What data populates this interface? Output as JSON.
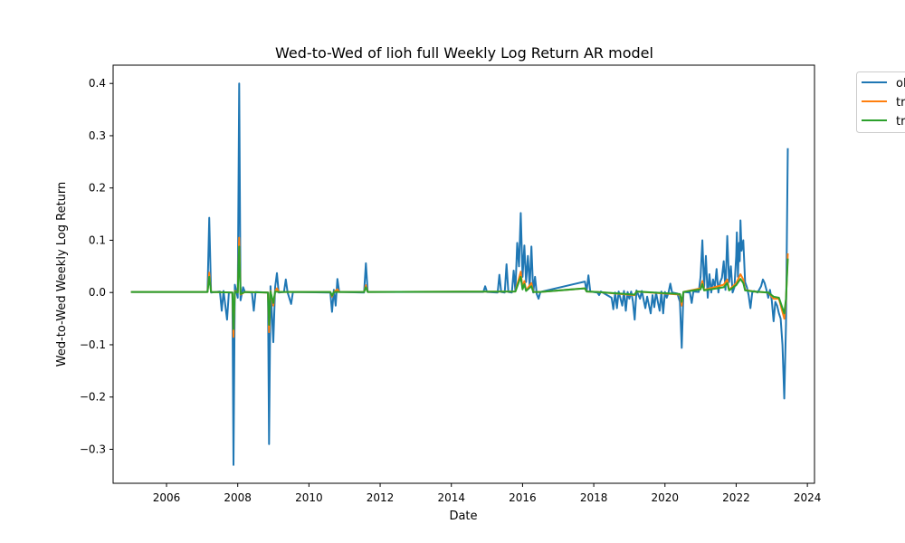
{
  "chart_data": {
    "type": "line",
    "title": "Wed-to-Wed of lioh full Weekly Log Return AR model",
    "xlabel": "Date",
    "ylabel": "Wed-to-Wed Weekly Log Return",
    "xlim": [
      2004.5,
      2024.2
    ],
    "ylim": [
      -0.365,
      0.435
    ],
    "x_ticks": [
      2006,
      2008,
      2010,
      2012,
      2014,
      2016,
      2018,
      2020,
      2022,
      2024
    ],
    "x_tick_labels": [
      "2006",
      "2008",
      "2010",
      "2012",
      "2014",
      "2016",
      "2018",
      "2020",
      "2022",
      "2024"
    ],
    "y_ticks": [
      -0.3,
      -0.2,
      -0.1,
      0.0,
      0.1,
      0.2,
      0.3,
      0.4
    ],
    "y_tick_labels": [
      "−0.3",
      "−0.2",
      "−0.1",
      "0.0",
      "0.1",
      "0.2",
      "0.3",
      "0.4"
    ],
    "grid": false,
    "legend_position": "outside-top-right",
    "series": [
      {
        "name": "ol",
        "color": "#1f77b4",
        "points": [
          [
            2005.0,
            0.001
          ],
          [
            2007.15,
            0.001
          ],
          [
            2007.2,
            0.143
          ],
          [
            2007.25,
            0.0
          ],
          [
            2007.5,
            0.002
          ],
          [
            2007.55,
            -0.035
          ],
          [
            2007.6,
            0.003
          ],
          [
            2007.7,
            -0.052
          ],
          [
            2007.75,
            0.0
          ],
          [
            2007.85,
            0.0
          ],
          [
            2007.88,
            -0.33
          ],
          [
            2007.92,
            0.015
          ],
          [
            2008.0,
            -0.01
          ],
          [
            2008.04,
            0.4
          ],
          [
            2008.08,
            -0.015
          ],
          [
            2008.15,
            0.01
          ],
          [
            2008.2,
            0.001
          ],
          [
            2008.4,
            0.0
          ],
          [
            2008.45,
            -0.035
          ],
          [
            2008.5,
            0.001
          ],
          [
            2008.85,
            0.0
          ],
          [
            2008.88,
            -0.29
          ],
          [
            2008.92,
            0.012
          ],
          [
            2009.0,
            -0.095
          ],
          [
            2009.05,
            0.01
          ],
          [
            2009.1,
            0.037
          ],
          [
            2009.15,
            0.0
          ],
          [
            2009.3,
            0.001
          ],
          [
            2009.35,
            0.025
          ],
          [
            2009.4,
            0.0
          ],
          [
            2009.5,
            -0.022
          ],
          [
            2009.55,
            0.001
          ],
          [
            2010.6,
            0.0
          ],
          [
            2010.65,
            -0.037
          ],
          [
            2010.7,
            0.005
          ],
          [
            2010.75,
            -0.025
          ],
          [
            2010.8,
            0.026
          ],
          [
            2010.85,
            0.001
          ],
          [
            2011.55,
            0.0
          ],
          [
            2011.6,
            0.056
          ],
          [
            2011.65,
            0.001
          ],
          [
            2014.9,
            0.001
          ],
          [
            2014.95,
            0.012
          ],
          [
            2015.0,
            0.001
          ],
          [
            2015.3,
            0.0
          ],
          [
            2015.35,
            0.034
          ],
          [
            2015.4,
            0.001
          ],
          [
            2015.5,
            0.0
          ],
          [
            2015.55,
            0.054
          ],
          [
            2015.6,
            0.001
          ],
          [
            2015.7,
            0.0
          ],
          [
            2015.75,
            0.042
          ],
          [
            2015.8,
            0.003
          ],
          [
            2015.85,
            0.095
          ],
          [
            2015.9,
            0.05
          ],
          [
            2015.95,
            0.152
          ],
          [
            2016.0,
            0.03
          ],
          [
            2016.05,
            0.09
          ],
          [
            2016.1,
            0.02
          ],
          [
            2016.15,
            0.07
          ],
          [
            2016.2,
            0.01
          ],
          [
            2016.25,
            0.088
          ],
          [
            2016.3,
            0.0
          ],
          [
            2016.35,
            0.03
          ],
          [
            2016.4,
            -0.003
          ],
          [
            2016.45,
            -0.012
          ],
          [
            2016.5,
            0.001
          ],
          [
            2017.75,
            0.021
          ],
          [
            2017.8,
            0.002
          ],
          [
            2017.85,
            0.033
          ],
          [
            2017.9,
            0.002
          ],
          [
            2018.1,
            0.0
          ],
          [
            2018.15,
            -0.005
          ],
          [
            2018.2,
            0.002
          ],
          [
            2018.5,
            -0.01
          ],
          [
            2018.55,
            -0.032
          ],
          [
            2018.6,
            0.0
          ],
          [
            2018.65,
            -0.03
          ],
          [
            2018.7,
            0.002
          ],
          [
            2018.8,
            -0.025
          ],
          [
            2018.85,
            0.003
          ],
          [
            2018.9,
            -0.035
          ],
          [
            2018.95,
            0.001
          ],
          [
            2019.0,
            -0.012
          ],
          [
            2019.05,
            0.002
          ],
          [
            2019.1,
            -0.018
          ],
          [
            2019.15,
            -0.052
          ],
          [
            2019.2,
            0.004
          ],
          [
            2019.3,
            -0.012
          ],
          [
            2019.35,
            0.003
          ],
          [
            2019.45,
            -0.03
          ],
          [
            2019.5,
            -0.008
          ],
          [
            2019.6,
            -0.04
          ],
          [
            2019.65,
            -0.005
          ],
          [
            2019.7,
            -0.028
          ],
          [
            2019.75,
            0.0
          ],
          [
            2019.8,
            -0.018
          ],
          [
            2019.85,
            -0.035
          ],
          [
            2019.9,
            0.002
          ],
          [
            2019.95,
            -0.04
          ],
          [
            2020.0,
            0.001
          ],
          [
            2020.05,
            -0.01
          ],
          [
            2020.1,
            0.0
          ],
          [
            2020.15,
            0.017
          ],
          [
            2020.2,
            0.0
          ],
          [
            2020.35,
            -0.002
          ],
          [
            2020.42,
            -0.018
          ],
          [
            2020.47,
            -0.106
          ],
          [
            2020.52,
            0.001
          ],
          [
            2020.7,
            0.0
          ],
          [
            2020.75,
            -0.02
          ],
          [
            2020.8,
            0.002
          ],
          [
            2020.95,
            0.001
          ],
          [
            2021.0,
            0.03
          ],
          [
            2021.05,
            0.1
          ],
          [
            2021.1,
            0.01
          ],
          [
            2021.15,
            0.07
          ],
          [
            2021.2,
            -0.01
          ],
          [
            2021.25,
            0.035
          ],
          [
            2021.3,
            0.0
          ],
          [
            2021.35,
            0.025
          ],
          [
            2021.4,
            0.01
          ],
          [
            2021.45,
            0.045
          ],
          [
            2021.5,
            0.0
          ],
          [
            2021.55,
            0.02
          ],
          [
            2021.6,
            0.028
          ],
          [
            2021.65,
            0.06
          ],
          [
            2021.7,
            0.005
          ],
          [
            2021.75,
            0.108
          ],
          [
            2021.8,
            0.02
          ],
          [
            2021.85,
            0.05
          ],
          [
            2021.9,
            0.0
          ],
          [
            2021.95,
            0.01
          ],
          [
            2022.0,
            0.07
          ],
          [
            2022.02,
            0.115
          ],
          [
            2022.05,
            0.03
          ],
          [
            2022.08,
            0.095
          ],
          [
            2022.1,
            0.06
          ],
          [
            2022.12,
            0.138
          ],
          [
            2022.15,
            0.08
          ],
          [
            2022.2,
            0.1
          ],
          [
            2022.25,
            0.02
          ],
          [
            2022.3,
            0.01
          ],
          [
            2022.35,
            -0.005
          ],
          [
            2022.4,
            -0.03
          ],
          [
            2022.45,
            0.0
          ],
          [
            2022.5,
            0.003
          ],
          [
            2022.6,
            0.0
          ],
          [
            2022.7,
            0.012
          ],
          [
            2022.75,
            0.025
          ],
          [
            2022.8,
            0.018
          ],
          [
            2022.85,
            0.005
          ],
          [
            2022.9,
            -0.01
          ],
          [
            2022.95,
            0.005
          ],
          [
            2023.0,
            -0.015
          ],
          [
            2023.05,
            -0.055
          ],
          [
            2023.1,
            -0.018
          ],
          [
            2023.15,
            -0.025
          ],
          [
            2023.2,
            -0.04
          ],
          [
            2023.25,
            -0.05
          ],
          [
            2023.3,
            -0.1
          ],
          [
            2023.35,
            -0.203
          ],
          [
            2023.4,
            -0.06
          ],
          [
            2023.45,
            0.276
          ]
        ]
      },
      {
        "name": "tr",
        "color": "#ff7f0e",
        "points": [
          [
            2005.0,
            0.001
          ],
          [
            2007.15,
            0.001
          ],
          [
            2007.2,
            0.038
          ],
          [
            2007.25,
            0.001
          ],
          [
            2007.85,
            0.0
          ],
          [
            2007.88,
            -0.085
          ],
          [
            2007.92,
            0.003
          ],
          [
            2008.0,
            0.0
          ],
          [
            2008.04,
            0.105
          ],
          [
            2008.08,
            -0.004
          ],
          [
            2008.2,
            0.001
          ],
          [
            2008.85,
            0.0
          ],
          [
            2008.88,
            -0.076
          ],
          [
            2008.92,
            0.003
          ],
          [
            2009.0,
            -0.025
          ],
          [
            2009.05,
            0.002
          ],
          [
            2009.1,
            0.008
          ],
          [
            2009.15,
            0.001
          ],
          [
            2010.6,
            0.001
          ],
          [
            2010.65,
            -0.008
          ],
          [
            2010.7,
            0.001
          ],
          [
            2010.8,
            0.006
          ],
          [
            2010.85,
            0.001
          ],
          [
            2011.55,
            0.001
          ],
          [
            2011.6,
            0.014
          ],
          [
            2011.65,
            0.001
          ],
          [
            2015.8,
            0.002
          ],
          [
            2015.95,
            0.04
          ],
          [
            2016.0,
            0.008
          ],
          [
            2016.05,
            0.022
          ],
          [
            2016.1,
            0.004
          ],
          [
            2016.25,
            0.018
          ],
          [
            2016.3,
            0.001
          ],
          [
            2016.5,
            0.001
          ],
          [
            2017.75,
            0.008
          ],
          [
            2017.8,
            0.002
          ],
          [
            2018.1,
            0.001
          ],
          [
            2019.15,
            -0.005
          ],
          [
            2019.2,
            0.002
          ],
          [
            2020.42,
            -0.004
          ],
          [
            2020.47,
            -0.025
          ],
          [
            2020.52,
            0.001
          ],
          [
            2021.0,
            0.008
          ],
          [
            2021.05,
            0.022
          ],
          [
            2021.1,
            0.005
          ],
          [
            2021.65,
            0.015
          ],
          [
            2021.75,
            0.025
          ],
          [
            2021.8,
            0.005
          ],
          [
            2022.0,
            0.018
          ],
          [
            2022.12,
            0.035
          ],
          [
            2022.2,
            0.025
          ],
          [
            2022.25,
            0.005
          ],
          [
            2022.5,
            0.002
          ],
          [
            2022.9,
            0.0
          ],
          [
            2023.05,
            -0.012
          ],
          [
            2023.2,
            -0.012
          ],
          [
            2023.35,
            -0.05
          ],
          [
            2023.4,
            -0.015
          ],
          [
            2023.45,
            0.075
          ]
        ]
      },
      {
        "name": "tr",
        "color": "#2ca02c",
        "points": [
          [
            2005.0,
            0.001
          ],
          [
            2007.15,
            0.001
          ],
          [
            2007.2,
            0.03
          ],
          [
            2007.25,
            0.001
          ],
          [
            2007.85,
            0.0
          ],
          [
            2007.88,
            -0.07
          ],
          [
            2007.92,
            0.002
          ],
          [
            2008.0,
            0.0
          ],
          [
            2008.04,
            0.088
          ],
          [
            2008.08,
            -0.003
          ],
          [
            2008.2,
            0.001
          ],
          [
            2008.85,
            0.0
          ],
          [
            2008.88,
            -0.062
          ],
          [
            2008.92,
            0.002
          ],
          [
            2009.0,
            -0.02
          ],
          [
            2009.05,
            0.002
          ],
          [
            2009.15,
            0.001
          ],
          [
            2010.6,
            0.001
          ],
          [
            2010.65,
            -0.006
          ],
          [
            2010.7,
            0.001
          ],
          [
            2011.55,
            0.001
          ],
          [
            2011.6,
            0.01
          ],
          [
            2011.65,
            0.001
          ],
          [
            2015.8,
            0.002
          ],
          [
            2015.95,
            0.03
          ],
          [
            2016.0,
            0.006
          ],
          [
            2016.05,
            0.016
          ],
          [
            2016.1,
            0.003
          ],
          [
            2016.25,
            0.012
          ],
          [
            2016.3,
            0.001
          ],
          [
            2016.5,
            0.001
          ],
          [
            2017.75,
            0.008
          ],
          [
            2017.8,
            0.002
          ],
          [
            2018.1,
            0.001
          ],
          [
            2019.15,
            -0.004
          ],
          [
            2019.2,
            0.002
          ],
          [
            2020.42,
            -0.003
          ],
          [
            2020.47,
            -0.018
          ],
          [
            2020.52,
            0.001
          ],
          [
            2021.0,
            0.006
          ],
          [
            2021.05,
            0.016
          ],
          [
            2021.1,
            0.004
          ],
          [
            2021.65,
            0.01
          ],
          [
            2021.75,
            0.018
          ],
          [
            2021.8,
            0.004
          ],
          [
            2022.0,
            0.014
          ],
          [
            2022.12,
            0.026
          ],
          [
            2022.2,
            0.018
          ],
          [
            2022.25,
            0.004
          ],
          [
            2022.5,
            0.002
          ],
          [
            2022.9,
            0.0
          ],
          [
            2023.05,
            -0.008
          ],
          [
            2023.2,
            -0.01
          ],
          [
            2023.35,
            -0.04
          ],
          [
            2023.4,
            -0.012
          ],
          [
            2023.45,
            0.065
          ]
        ]
      }
    ]
  }
}
